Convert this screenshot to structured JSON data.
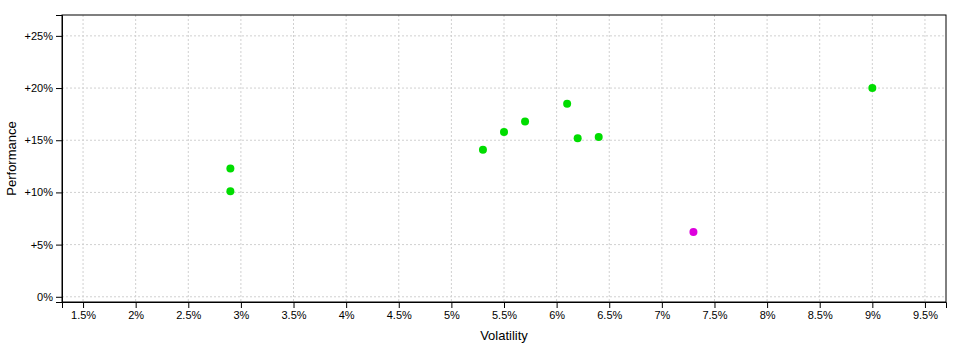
{
  "chart_data": {
    "type": "scatter",
    "xlabel": "Volatility",
    "ylabel": "Performance",
    "xlim": [
      0.013,
      0.097
    ],
    "ylim": [
      -0.005,
      0.27
    ],
    "xticks": [
      {
        "value": 0.015,
        "label": "1.5%"
      },
      {
        "value": 0.02,
        "label": "2%"
      },
      {
        "value": 0.025,
        "label": "2.5%"
      },
      {
        "value": 0.03,
        "label": "3%"
      },
      {
        "value": 0.035,
        "label": "3.5%"
      },
      {
        "value": 0.04,
        "label": "4%"
      },
      {
        "value": 0.045,
        "label": "4.5%"
      },
      {
        "value": 0.05,
        "label": "5%"
      },
      {
        "value": 0.055,
        "label": "5.5%"
      },
      {
        "value": 0.06,
        "label": "6%"
      },
      {
        "value": 0.065,
        "label": "6.5%"
      },
      {
        "value": 0.07,
        "label": "7%"
      },
      {
        "value": 0.075,
        "label": "7.5%"
      },
      {
        "value": 0.08,
        "label": "8%"
      },
      {
        "value": 0.085,
        "label": "8.5%"
      },
      {
        "value": 0.09,
        "label": "9%"
      },
      {
        "value": 0.095,
        "label": "9.5%"
      }
    ],
    "yticks": [
      {
        "value": 0,
        "label": "0%"
      },
      {
        "value": 0.05,
        "label": "+5%"
      },
      {
        "value": 0.1,
        "label": "+10%"
      },
      {
        "value": 0.15,
        "label": "+15%"
      },
      {
        "value": 0.2,
        "label": "+20%"
      },
      {
        "value": 0.25,
        "label": "+25%"
      }
    ],
    "grid": true,
    "series": [
      {
        "color": "#00dd00",
        "x": [
          0.029,
          0.029,
          0.053,
          0.055,
          0.057,
          0.061,
          0.062,
          0.064,
          0.09
        ],
        "values": [
          0.123,
          0.101,
          0.141,
          0.158,
          0.168,
          0.185,
          0.152,
          0.153,
          0.2
        ]
      },
      {
        "color": "#dd00dd",
        "x": [
          0.073
        ],
        "values": [
          0.062
        ]
      }
    ]
  }
}
